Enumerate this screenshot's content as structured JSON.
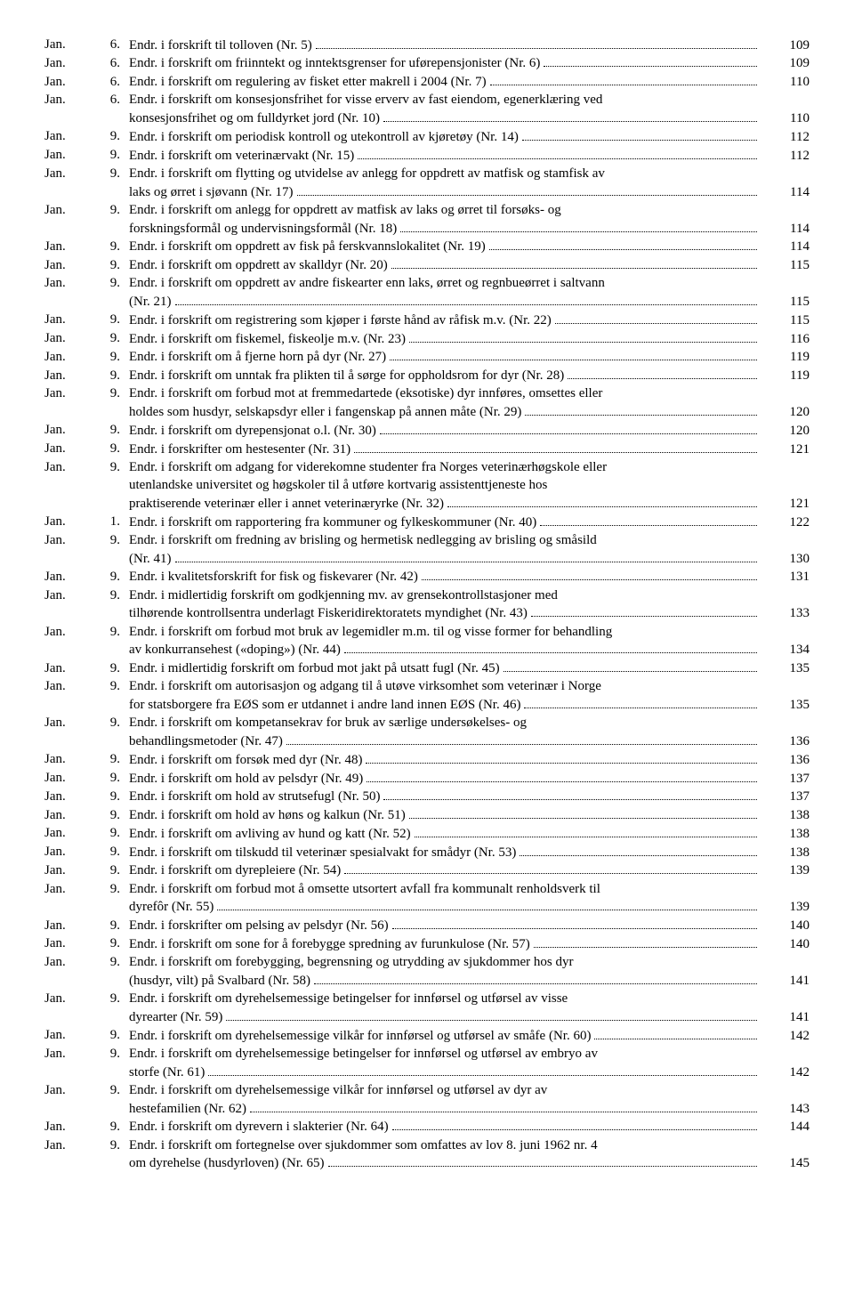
{
  "entries": [
    {
      "month": "Jan.",
      "day": "6.",
      "lines": [
        "Endr. i forskrift til tolloven (Nr. 5)"
      ],
      "page": "109"
    },
    {
      "month": "Jan.",
      "day": "6.",
      "lines": [
        "Endr. i forskrift om friinntekt og inntektsgrenser for uførepensjonister (Nr. 6)"
      ],
      "page": "109"
    },
    {
      "month": "Jan.",
      "day": "6.",
      "lines": [
        "Endr. i forskrift om regulering av fisket etter makrell i 2004 (Nr. 7)"
      ],
      "page": "110"
    },
    {
      "month": "Jan.",
      "day": "6.",
      "lines": [
        "Endr. i forskrift om konsesjonsfrihet for visse erverv av fast eiendom, egenerklæring ved",
        "konsesjonsfrihet og om fulldyrket jord (Nr. 10)"
      ],
      "page": "110"
    },
    {
      "month": "Jan.",
      "day": "9.",
      "lines": [
        "Endr. i forskrift om periodisk kontroll og utekontroll av kjøretøy (Nr. 14)"
      ],
      "page": "112"
    },
    {
      "month": "Jan.",
      "day": "9.",
      "lines": [
        "Endr. i forskrift om veterinærvakt (Nr. 15)"
      ],
      "page": "112"
    },
    {
      "month": "Jan.",
      "day": "9.",
      "lines": [
        "Endr. i forskrift om flytting og utvidelse av anlegg for oppdrett av matfisk og stamfisk av",
        "laks og ørret i sjøvann (Nr. 17)"
      ],
      "page": "114"
    },
    {
      "month": "Jan.",
      "day": "9.",
      "lines": [
        "Endr. i forskrift om anlegg for oppdrett av matfisk av laks og ørret til forsøks- og",
        "forskningsformål og undervisningsformål (Nr. 18)"
      ],
      "page": "114"
    },
    {
      "month": "Jan.",
      "day": "9.",
      "lines": [
        "Endr. i forskrift om oppdrett av fisk på ferskvannslokalitet (Nr. 19)"
      ],
      "page": "114"
    },
    {
      "month": "Jan.",
      "day": "9.",
      "lines": [
        "Endr. i forskrift om oppdrett av skalldyr (Nr. 20)"
      ],
      "page": "115"
    },
    {
      "month": "Jan.",
      "day": "9.",
      "lines": [
        "Endr. i forskrift om oppdrett av andre fiskearter enn laks, ørret og regnbueørret i saltvann",
        "(Nr. 21)"
      ],
      "page": "115"
    },
    {
      "month": "Jan.",
      "day": "9.",
      "lines": [
        "Endr. i forskrift om registrering som kjøper i første hånd av råfisk m.v. (Nr. 22)"
      ],
      "page": "115"
    },
    {
      "month": "Jan.",
      "day": "9.",
      "lines": [
        "Endr. i forskrift om fiskemel, fiskeolje m.v. (Nr. 23)"
      ],
      "page": "116"
    },
    {
      "month": "Jan.",
      "day": "9.",
      "lines": [
        "Endr. i forskrift om å fjerne horn på dyr (Nr. 27)"
      ],
      "page": "119"
    },
    {
      "month": "Jan.",
      "day": "9.",
      "lines": [
        "Endr. i forskrift om unntak fra plikten til å sørge for oppholdsrom for dyr (Nr. 28)"
      ],
      "page": "119"
    },
    {
      "month": "Jan.",
      "day": "9.",
      "lines": [
        "Endr. i forskrift om forbud mot at fremmedartede (eksotiske) dyr innføres, omsettes eller",
        "holdes som husdyr, selskapsdyr eller i fangenskap på annen måte (Nr. 29)"
      ],
      "page": "120"
    },
    {
      "month": "Jan.",
      "day": "9.",
      "lines": [
        "Endr. i forskrift om dyrepensjonat o.l. (Nr. 30)"
      ],
      "page": "120"
    },
    {
      "month": "Jan.",
      "day": "9.",
      "lines": [
        "Endr. i forskrifter om hestesenter (Nr. 31)"
      ],
      "page": "121"
    },
    {
      "month": "Jan.",
      "day": "9.",
      "lines": [
        "Endr. i forskrift om adgang for viderekomne studenter fra Norges veterinærhøgskole eller",
        "utenlandske universitet og høgskoler til å utføre kortvarig assistenttjeneste hos",
        "praktiserende veterinær eller i annet veterinæryrke (Nr. 32)"
      ],
      "page": "121"
    },
    {
      "month": "Jan.",
      "day": "1.",
      "lines": [
        "Endr. i forskrift om rapportering fra kommuner og fylkeskommuner (Nr. 40)"
      ],
      "page": "122"
    },
    {
      "month": "Jan.",
      "day": "9.",
      "lines": [
        "Endr. i forskrift om fredning av brisling og hermetisk nedlegging av brisling og småsild",
        "(Nr. 41)"
      ],
      "page": "130"
    },
    {
      "month": "Jan.",
      "day": "9.",
      "lines": [
        "Endr. i kvalitetsforskrift for fisk og fiskevarer (Nr. 42)"
      ],
      "page": "131"
    },
    {
      "month": "Jan.",
      "day": "9.",
      "lines": [
        "Endr. i midlertidig forskrift om godkjenning mv. av grensekontrollstasjoner med",
        "tilhørende kontrollsentra underlagt Fiskeridirektoratets myndighet (Nr. 43)"
      ],
      "page": "133"
    },
    {
      "month": "Jan.",
      "day": "9.",
      "lines": [
        "Endr. i forskrift om forbud mot bruk av legemidler m.m. til og visse former for behandling",
        "av konkurransehest («doping») (Nr. 44)"
      ],
      "page": "134"
    },
    {
      "month": "Jan.",
      "day": "9.",
      "lines": [
        "Endr. i midlertidig forskrift om forbud mot jakt på utsatt fugl (Nr. 45)"
      ],
      "page": "135"
    },
    {
      "month": "Jan.",
      "day": "9.",
      "lines": [
        "Endr. i forskrift om autorisasjon og adgang til å utøve virksomhet som veterinær i Norge",
        "for statsborgere fra EØS som er utdannet i andre land innen EØS (Nr. 46)"
      ],
      "page": "135"
    },
    {
      "month": "Jan.",
      "day": "9.",
      "lines": [
        "Endr. i forskrift om kompetansekrav for bruk av særlige undersøkelses- og",
        "behandlingsmetoder (Nr. 47)"
      ],
      "page": "136"
    },
    {
      "month": "Jan.",
      "day": "9.",
      "lines": [
        "Endr. i forskrift om forsøk med dyr (Nr. 48)"
      ],
      "page": "136"
    },
    {
      "month": "Jan.",
      "day": "9.",
      "lines": [
        "Endr. i forskrift om hold av pelsdyr (Nr. 49)"
      ],
      "page": "137"
    },
    {
      "month": "Jan.",
      "day": "9.",
      "lines": [
        "Endr. i forskrift om hold av strutsefugl (Nr. 50)"
      ],
      "page": "137"
    },
    {
      "month": "Jan.",
      "day": "9.",
      "lines": [
        "Endr. i forskrift om hold av høns og kalkun (Nr. 51)"
      ],
      "page": "138"
    },
    {
      "month": "Jan.",
      "day": "9.",
      "lines": [
        "Endr. i forskrift om avliving av hund og katt (Nr. 52)"
      ],
      "page": "138"
    },
    {
      "month": "Jan.",
      "day": "9.",
      "lines": [
        "Endr. i forskrift om tilskudd til veterinær spesialvakt for smådyr (Nr. 53)"
      ],
      "page": "138"
    },
    {
      "month": "Jan.",
      "day": "9.",
      "lines": [
        "Endr. i forskrift om dyrepleiere (Nr. 54)"
      ],
      "page": "139"
    },
    {
      "month": "Jan.",
      "day": "9.",
      "lines": [
        "Endr. i forskrift om forbud mot å omsette utsortert avfall fra kommunalt renholdsverk til",
        "dyrefôr (Nr. 55)"
      ],
      "page": "139"
    },
    {
      "month": "Jan.",
      "day": "9.",
      "lines": [
        "Endr. i forskrifter om pelsing av pelsdyr (Nr. 56)"
      ],
      "page": "140"
    },
    {
      "month": "Jan.",
      "day": "9.",
      "lines": [
        "Endr. i forskrift om sone for å forebygge spredning av furunkulose (Nr. 57)"
      ],
      "page": "140"
    },
    {
      "month": "Jan.",
      "day": "9.",
      "lines": [
        "Endr. i forskrift om forebygging, begrensning og utrydding av sjukdommer hos dyr",
        "(husdyr, vilt) på Svalbard (Nr. 58)"
      ],
      "page": "141"
    },
    {
      "month": "Jan.",
      "day": "9.",
      "lines": [
        "Endr. i forskrift om dyrehelsemessige betingelser for innførsel og utførsel av visse",
        "dyrearter (Nr. 59)"
      ],
      "page": "141"
    },
    {
      "month": "Jan.",
      "day": "9.",
      "lines": [
        "Endr. i forskrift om dyrehelsemessige vilkår for innførsel og utførsel av småfe (Nr. 60)"
      ],
      "page": "142"
    },
    {
      "month": "Jan.",
      "day": "9.",
      "lines": [
        "Endr. i forskrift om dyrehelsemessige betingelser for innførsel og utførsel av embryo av",
        "storfe (Nr. 61)"
      ],
      "page": "142"
    },
    {
      "month": "Jan.",
      "day": "9.",
      "lines": [
        "Endr. i forskrift om dyrehelsemessige vilkår for innførsel og utførsel av dyr av",
        "hestefamilien (Nr. 62)"
      ],
      "page": "143"
    },
    {
      "month": "Jan.",
      "day": "9.",
      "lines": [
        "Endr. i forskrift om dyrevern i slakterier (Nr. 64)"
      ],
      "page": "144"
    },
    {
      "month": "Jan.",
      "day": "9.",
      "lines": [
        "Endr. i forskrift om fortegnelse over sjukdommer som omfattes av lov 8. juni 1962 nr. 4",
        "om dyrehelse (husdyrloven) (Nr. 65)"
      ],
      "page": "145"
    }
  ]
}
